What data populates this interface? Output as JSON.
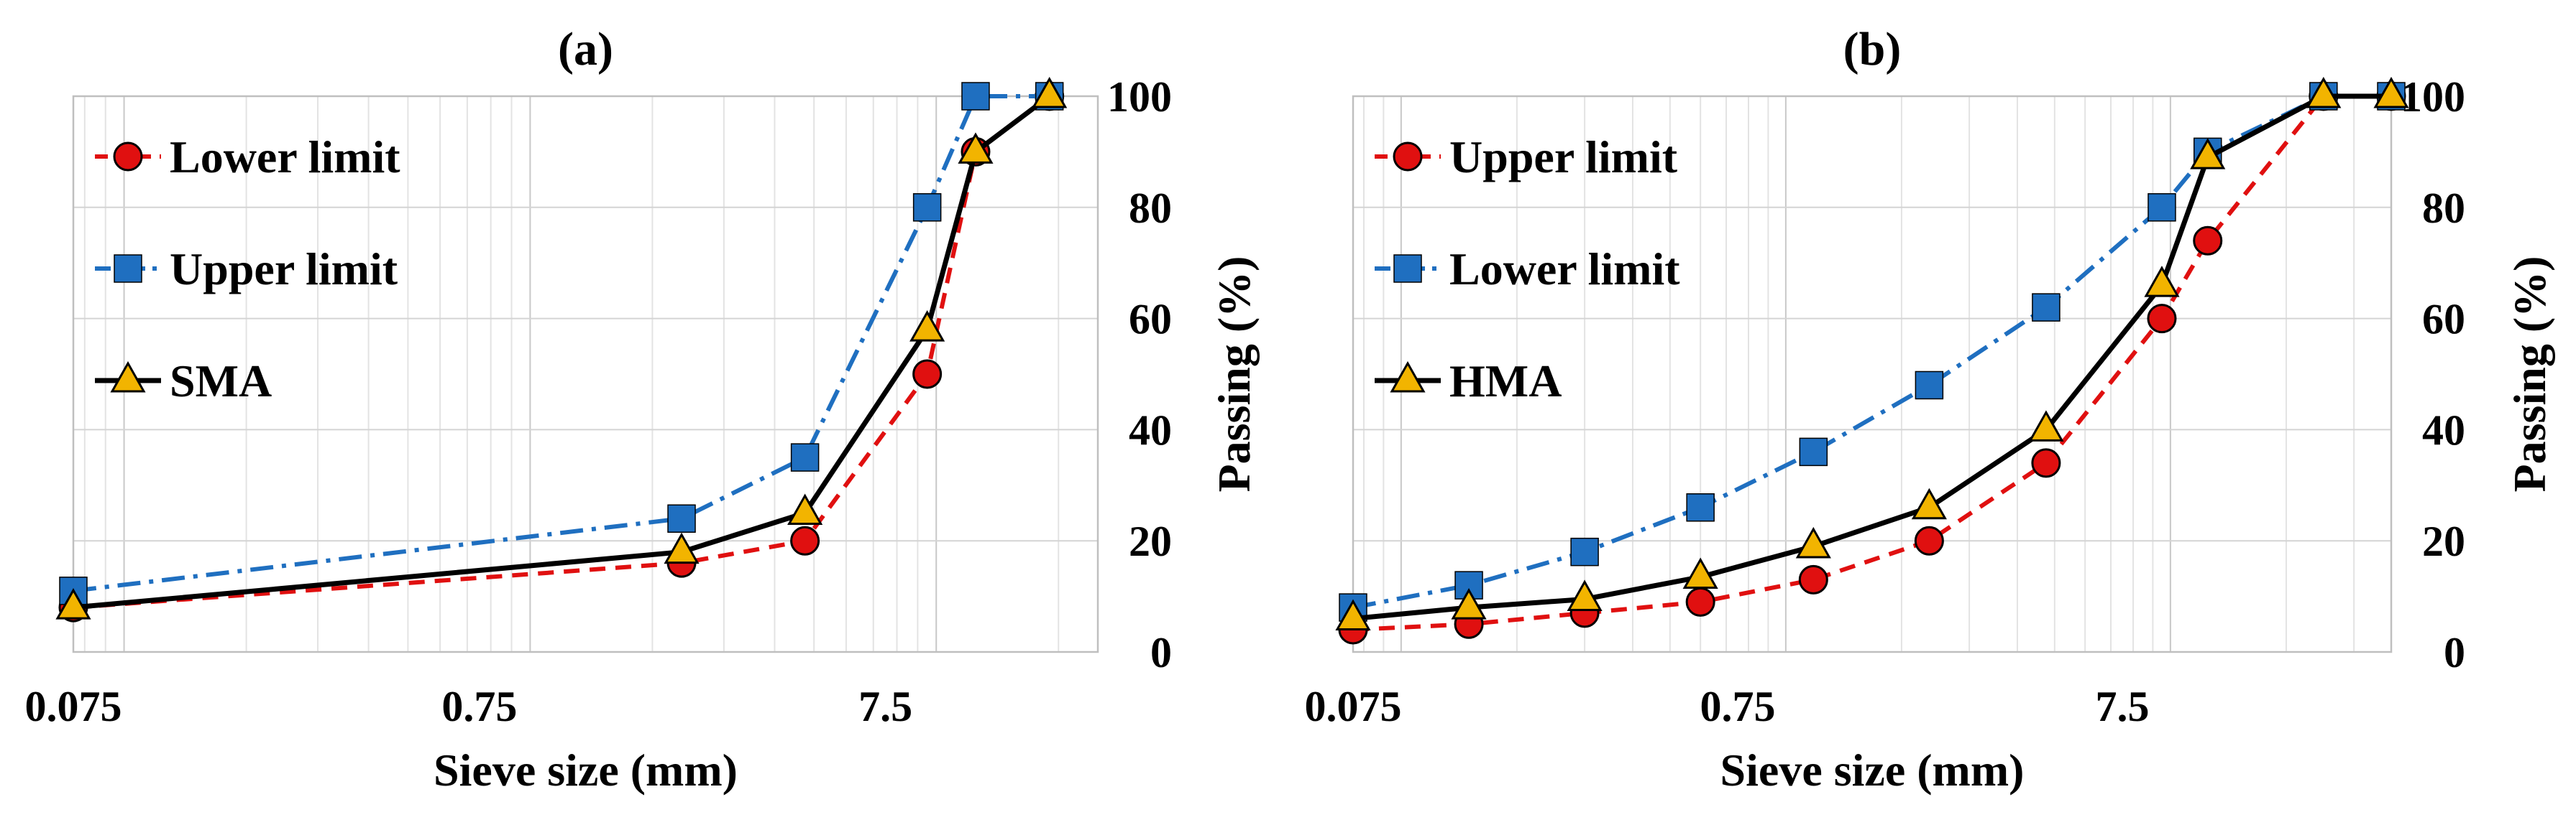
{
  "chart_data": [
    {
      "type": "line",
      "title": "(a)",
      "xlabel": "Sieve size (mm)",
      "ylabel": "Passing (%)",
      "xscale": "log",
      "xlim": [
        0.075,
        25
      ],
      "ylim": [
        0,
        100
      ],
      "xticks": [
        0.075,
        0.75,
        7.5
      ],
      "xtick_labels": [
        "0.075",
        "0.75",
        "7.5"
      ],
      "yticks": [
        0,
        20,
        40,
        60,
        80,
        100
      ],
      "ytick_labels": [
        "0",
        "20",
        "40",
        "60",
        "80",
        "100"
      ],
      "y_axis_side": "right",
      "grid": true,
      "legend_position": "top-left",
      "series": [
        {
          "name": "Lower limit",
          "color": "#e01010",
          "marker": "circle",
          "marker_fill": "#e01010",
          "line": "dashed",
          "x": [
            0.075,
            2.36,
            4.75,
            9.5,
            12.5,
            19
          ],
          "y": [
            8,
            16,
            20,
            50,
            90,
            100
          ]
        },
        {
          "name": "Upper limit",
          "color": "#1f6fc0",
          "marker": "square",
          "marker_fill": "#1f6fc0",
          "line": "dashdot",
          "x": [
            0.075,
            2.36,
            4.75,
            9.5,
            12.5,
            19
          ],
          "y": [
            11,
            24,
            35,
            80,
            100,
            100
          ]
        },
        {
          "name": "SMA",
          "color": "#000000",
          "marker": "triangle",
          "marker_fill": "#f2b400",
          "line": "solid",
          "x": [
            0.075,
            2.36,
            4.75,
            9.5,
            12.5,
            19
          ],
          "y": [
            8,
            18,
            25,
            58,
            90,
            100
          ]
        }
      ]
    },
    {
      "type": "line",
      "title": "(b)",
      "xlabel": "Sieve size (mm)",
      "ylabel": "Passing (%)",
      "xscale": "log",
      "xlim": [
        0.075,
        37.5
      ],
      "ylim": [
        0,
        100
      ],
      "xticks": [
        0.075,
        0.75,
        7.5
      ],
      "xtick_labels": [
        "0.075",
        "0.75",
        "7.5"
      ],
      "yticks": [
        0,
        20,
        40,
        60,
        80,
        100
      ],
      "ytick_labels": [
        "0",
        "20",
        "40",
        "60",
        "80",
        "100"
      ],
      "y_axis_side": "right",
      "grid": true,
      "legend_position": "top-left",
      "series": [
        {
          "name": "Upper limit",
          "color": "#e01010",
          "marker": "circle",
          "marker_fill": "#e01010",
          "line": "dashed",
          "x": [
            0.075,
            0.15,
            0.3,
            0.6,
            1.18,
            2.36,
            4.75,
            9.5,
            12.5,
            25,
            37.5
          ],
          "y": [
            4,
            5,
            7,
            9,
            13,
            20,
            34,
            60,
            74,
            100,
            100
          ]
        },
        {
          "name": "Lower limit",
          "color": "#1f6fc0",
          "marker": "square",
          "marker_fill": "#1f6fc0",
          "line": "dashdot",
          "x": [
            0.075,
            0.15,
            0.3,
            0.6,
            1.18,
            2.36,
            4.75,
            9.5,
            12.5,
            25,
            37.5
          ],
          "y": [
            8,
            12,
            18,
            26,
            36,
            48,
            62,
            80,
            90,
            100,
            100
          ]
        },
        {
          "name": "HMA",
          "color": "#000000",
          "marker": "triangle",
          "marker_fill": "#f2b400",
          "line": "solid",
          "x": [
            0.075,
            0.15,
            0.3,
            0.6,
            1.18,
            2.36,
            4.75,
            9.5,
            12.5,
            25,
            37.5
          ],
          "y": [
            6,
            8,
            9.5,
            13.5,
            19,
            26,
            40,
            66,
            89,
            100,
            100
          ]
        }
      ]
    }
  ]
}
